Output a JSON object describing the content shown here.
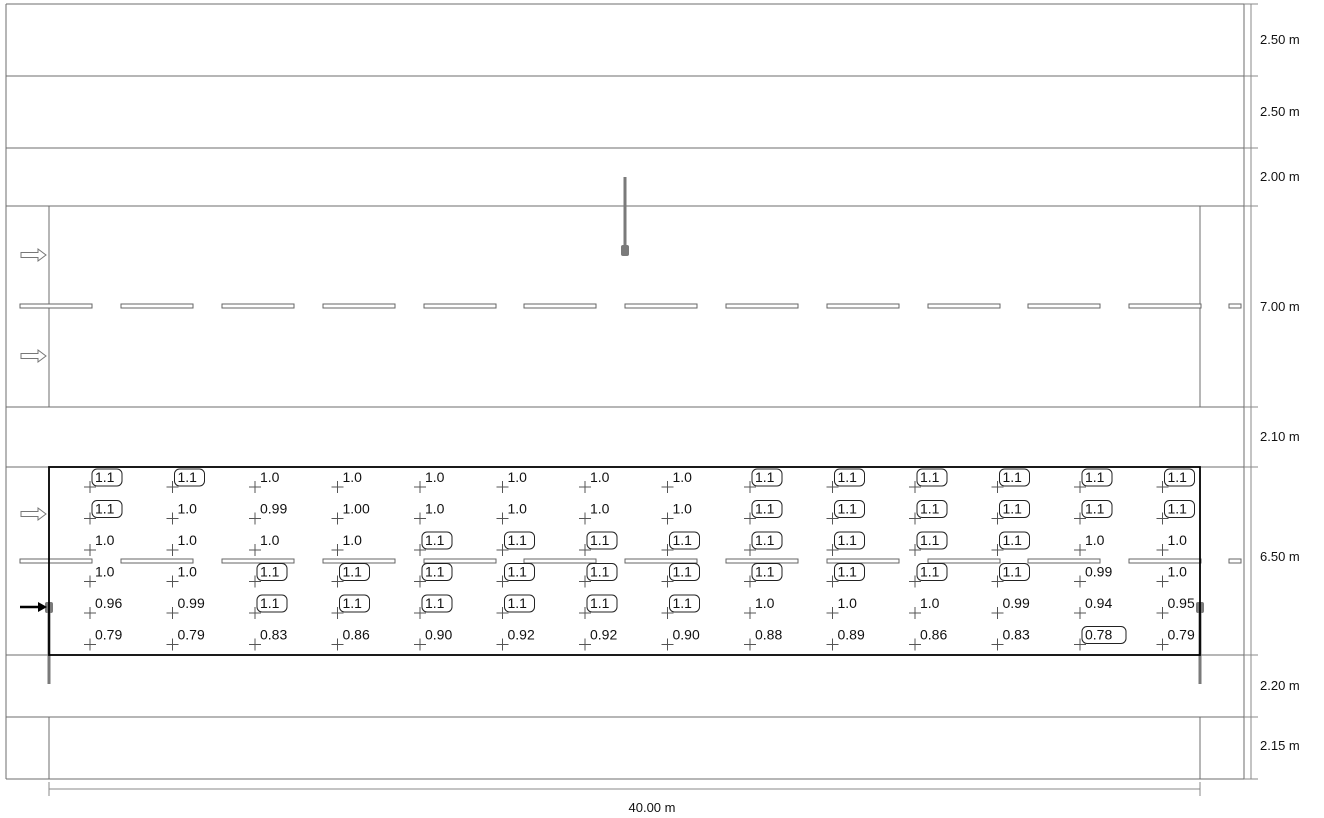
{
  "dimensions": {
    "band_labels": [
      "2.50 m",
      "2.50 m",
      "2.00 m",
      "7.00 m",
      "2.10 m",
      "6.50 m",
      "2.20 m",
      "2.15 m"
    ],
    "total_length": "40.00 m"
  },
  "calculation_grid": {
    "rows": [
      [
        "1.1",
        "1.1",
        "1.0",
        "1.0",
        "1.0",
        "1.0",
        "1.0",
        "1.0",
        "1.1",
        "1.1",
        "1.1",
        "1.1",
        "1.1",
        "1.1"
      ],
      [
        "1.1",
        "1.0",
        "0.99",
        "1.00",
        "1.0",
        "1.0",
        "1.0",
        "1.0",
        "1.1",
        "1.1",
        "1.1",
        "1.1",
        "1.1",
        "1.1"
      ],
      [
        "1.0",
        "1.0",
        "1.0",
        "1.0",
        "1.1",
        "1.1",
        "1.1",
        "1.1",
        "1.1",
        "1.1",
        "1.1",
        "1.1",
        "1.0",
        "1.0"
      ],
      [
        "1.0",
        "1.0",
        "1.1",
        "1.1",
        "1.1",
        "1.1",
        "1.1",
        "1.1",
        "1.1",
        "1.1",
        "1.1",
        "1.1",
        "0.99",
        "1.0"
      ],
      [
        "0.96",
        "0.99",
        "1.1",
        "1.1",
        "1.1",
        "1.1",
        "1.1",
        "1.1",
        "1.0",
        "1.0",
        "1.0",
        "0.99",
        "0.94",
        "0.95"
      ],
      [
        "0.79",
        "0.79",
        "0.83",
        "0.86",
        "0.90",
        "0.92",
        "0.92",
        "0.90",
        "0.88",
        "0.89",
        "0.86",
        "0.83",
        "0.78",
        "0.79"
      ]
    ],
    "boxed_values": [
      "1.1",
      "0.78"
    ],
    "min_cell": [
      5,
      12
    ]
  },
  "icons": {
    "lane_arrow": "hollow-right-arrow-icon",
    "observer": "black-right-arrow-icon",
    "luminaire": "pole-luminaire-icon",
    "grid_point": "crosshair-icon"
  },
  "colors": {
    "line": "#555555",
    "outline": "#000000",
    "pole": "#7a7a7a"
  }
}
